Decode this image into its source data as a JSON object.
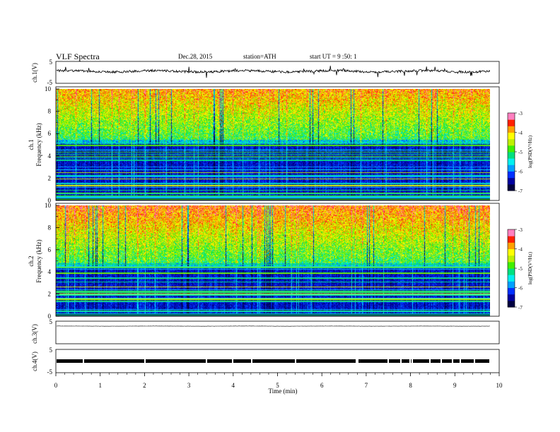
{
  "header": {
    "title": "VLF  Spectra",
    "date": "Dec.28, 2015",
    "station": "station=ATH",
    "start_ut": "start  UT  =   9  :50: 1"
  },
  "chart_data": {
    "type": "heatmap",
    "xlabel": "Time  (min)",
    "xlim": [
      0,
      10
    ],
    "xticks": [
      "0",
      "1",
      "2",
      "3",
      "4",
      "5",
      "6",
      "7",
      "8",
      "9",
      "10"
    ],
    "panels": [
      {
        "kind": "waveform",
        "label": "ch.1(V)",
        "ylim": [
          -5,
          5
        ],
        "yticks": [
          "5",
          "-5"
        ],
        "style": "noisy"
      },
      {
        "kind": "spectrogram",
        "label": "ch.1",
        "ylabel": "Frequency  (kHz)",
        "ylim": [
          0,
          10
        ],
        "yticks": [
          "0",
          "2",
          "4",
          "6",
          "8",
          "10"
        ],
        "noise_floor_khz": 5.5,
        "colorbar": {
          "label": "log(PSD(V²/Hz)",
          "range": [
            -7,
            -3
          ],
          "ticks": [
            "-3",
            "-4",
            "-5",
            "-6",
            "-7"
          ]
        }
      },
      {
        "kind": "spectrogram",
        "label": "ch.2",
        "ylabel": "Frequency  (kHz)",
        "ylim": [
          0,
          10
        ],
        "yticks": [
          "0",
          "2",
          "4",
          "6",
          "8",
          "10"
        ],
        "noise_floor_khz": 4.8,
        "colorbar": {
          "label": "log(PSD(V²/Hz)",
          "range": [
            -7,
            -3
          ],
          "ticks": [
            "-3",
            "-4",
            "-5",
            "-6",
            "-7"
          ]
        }
      },
      {
        "kind": "waveform",
        "label": "ch.3(V)",
        "ylim": [
          -5,
          5
        ],
        "yticks": [
          "5",
          "-5"
        ],
        "style": "flat"
      },
      {
        "kind": "waveform",
        "label": "ch.4(V)",
        "ylim": [
          -5,
          5
        ],
        "yticks": [
          "5",
          "-5"
        ],
        "style": "thick"
      }
    ],
    "colormap": [
      "#000040",
      "#0000a0",
      "#0030ff",
      "#00a0ff",
      "#00f0f0",
      "#00e080",
      "#40f000",
      "#c0f000",
      "#ffff00",
      "#ffa000",
      "#ff2000",
      "#ff80c0"
    ]
  }
}
